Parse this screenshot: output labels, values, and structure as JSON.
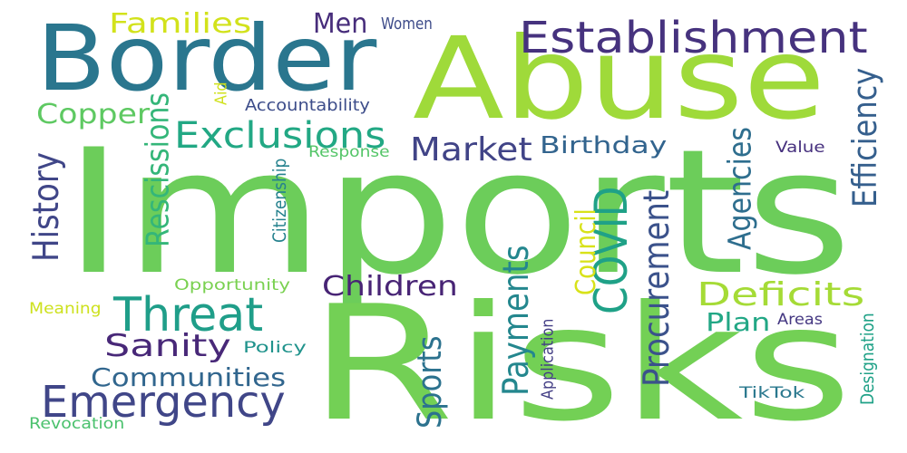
{
  "words": [
    {
      "key": "imports",
      "text": "Imports",
      "color": "#6ccd5a"
    },
    {
      "key": "risks",
      "text": "Risks",
      "color": "#73d055"
    },
    {
      "key": "abuse",
      "text": "Abuse",
      "color": "#9fda3a"
    },
    {
      "key": "border",
      "text": "Border",
      "color": "#2a768e"
    },
    {
      "key": "establishment",
      "text": "Establishment",
      "color": "#46327e"
    },
    {
      "key": "threat",
      "text": "Threat",
      "color": "#1f9e89"
    },
    {
      "key": "emergency",
      "text": "Emergency",
      "color": "#404688"
    },
    {
      "key": "exclusions",
      "text": "Exclusions",
      "color": "#22a884"
    },
    {
      "key": "covid",
      "text": "COVID",
      "color": "#1fa187"
    },
    {
      "key": "deficits",
      "text": "Deficits",
      "color": "#a5db36"
    },
    {
      "key": "market",
      "text": "Market",
      "color": "#414487"
    },
    {
      "key": "history",
      "text": "History",
      "color": "#404688"
    },
    {
      "key": "rescissions",
      "text": "Rescissions",
      "color": "#34b679"
    },
    {
      "key": "payments",
      "text": "Payments",
      "color": "#24878e"
    },
    {
      "key": "procurement",
      "text": "Procurement",
      "color": "#3b528b"
    },
    {
      "key": "efficiency",
      "text": "Efficiency",
      "color": "#355f8d"
    },
    {
      "key": "sports",
      "text": "Sports",
      "color": "#2c728e"
    },
    {
      "key": "agencies",
      "text": "Agencies",
      "color": "#2e6e8e"
    },
    {
      "key": "sanity",
      "text": "Sanity",
      "color": "#482878"
    },
    {
      "key": "communities",
      "text": "Communities",
      "color": "#31668e"
    },
    {
      "key": "children",
      "text": "Children",
      "color": "#482475"
    },
    {
      "key": "copper",
      "text": "Copper",
      "color": "#5ec962"
    },
    {
      "key": "families",
      "text": "Families",
      "color": "#d2e21b"
    },
    {
      "key": "men",
      "text": "Men",
      "color": "#472d7b"
    },
    {
      "key": "birthday",
      "text": "Birthday",
      "color": "#32648e"
    },
    {
      "key": "council",
      "text": "Council",
      "color": "#d8e219"
    },
    {
      "key": "plan",
      "text": "Plan",
      "color": "#22a785"
    },
    {
      "key": "women",
      "text": "Women",
      "color": "#3e4c8a"
    },
    {
      "key": "accountability",
      "text": "Accountability",
      "color": "#3d4d8a"
    },
    {
      "key": "aid",
      "text": "Aid",
      "color": "#d0e11c"
    },
    {
      "key": "response",
      "text": "Response",
      "color": "#54c568"
    },
    {
      "key": "citizenship",
      "text": "Citizenship",
      "color": "#26828e"
    },
    {
      "key": "opportunity",
      "text": "Opportunity",
      "color": "#7ad151"
    },
    {
      "key": "meaning",
      "text": "Meaning",
      "color": "#cde11d"
    },
    {
      "key": "policy",
      "text": "Policy",
      "color": "#20938c"
    },
    {
      "key": "value",
      "text": "Value",
      "color": "#46307e"
    },
    {
      "key": "areas",
      "text": "Areas",
      "color": "#453882"
    },
    {
      "key": "application",
      "text": "Application",
      "color": "#433e85"
    },
    {
      "key": "designation",
      "text": "Designation",
      "color": "#1fa187"
    },
    {
      "key": "tiktok",
      "text": "TikTok",
      "color": "#2a788e"
    },
    {
      "key": "revocation",
      "text": "Revocation",
      "color": "#4ac16d"
    }
  ]
}
